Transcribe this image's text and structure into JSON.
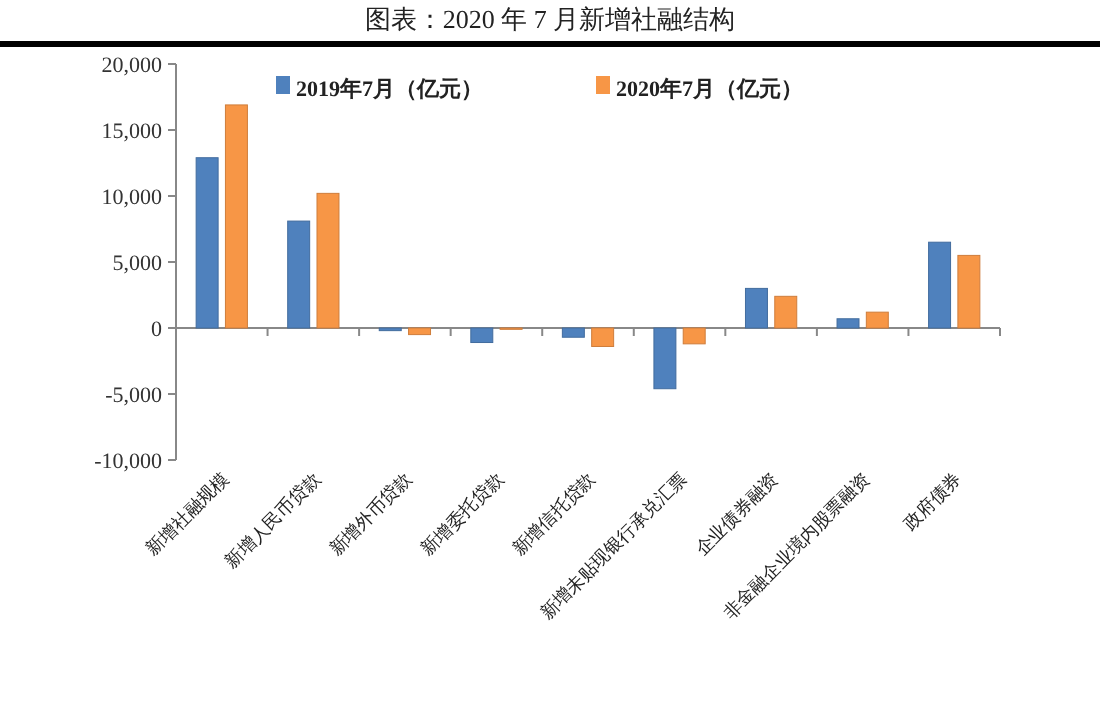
{
  "chart_data": {
    "type": "bar",
    "title": "图表：2020 年 7 月新增社融结构",
    "categories": [
      "新增社融规模",
      "新增人民币贷款",
      "新增外币贷款",
      "新增委托贷款",
      "新增信托贷款",
      "新增未贴现银行承兑汇票",
      "企业债券融资",
      "非金融企业境内股票融资",
      "政府债券"
    ],
    "series": [
      {
        "name": "2019年7月（亿元）",
        "color": "#4f81bd",
        "values": [
          12900,
          8100,
          -200,
          -1100,
          -700,
          -4600,
          3000,
          700,
          6500
        ]
      },
      {
        "name": "2020年7月（亿元）",
        "color": "#f79646",
        "values": [
          16900,
          10200,
          -500,
          -100,
          -1400,
          -1200,
          2400,
          1200,
          5500
        ]
      }
    ],
    "ylim": [
      -10000,
      20000
    ],
    "yticks": [
      {
        "value": -10000,
        "label": "-10,000"
      },
      {
        "value": -5000,
        "label": "-5,000"
      },
      0,
      {
        "value": 5000,
        "label": "5,000"
      },
      {
        "value": 10000,
        "label": "10,000"
      },
      {
        "value": 15000,
        "label": "15,000"
      },
      {
        "value": 20000,
        "label": "20,000"
      }
    ],
    "legend": "top"
  }
}
